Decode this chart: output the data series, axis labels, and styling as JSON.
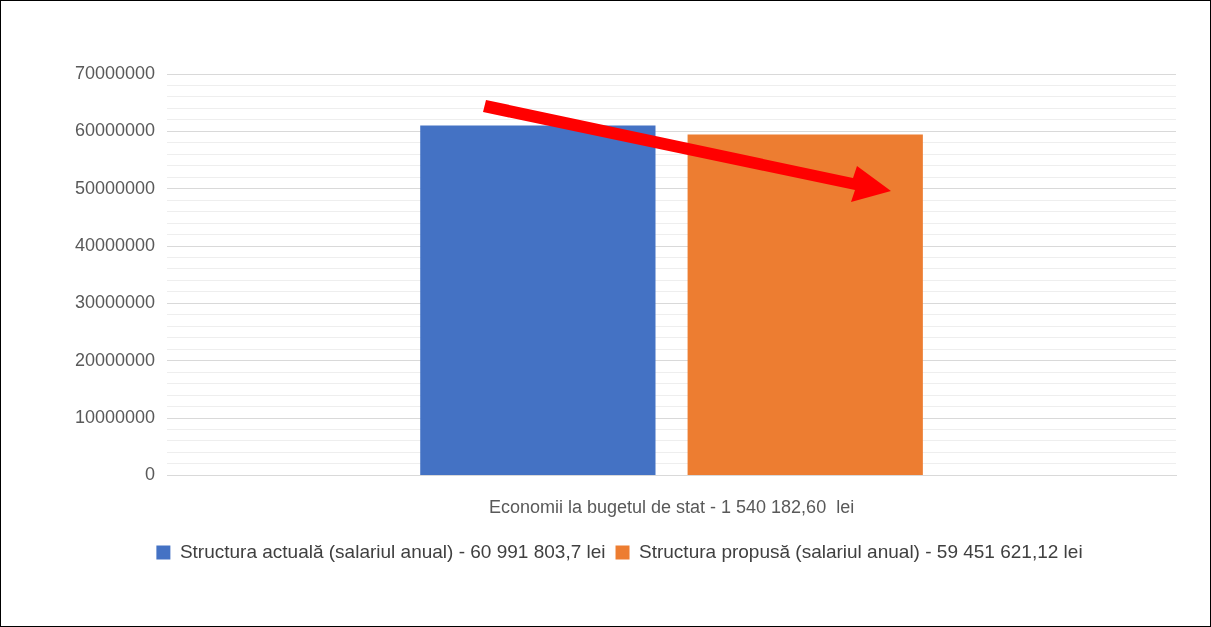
{
  "chart_data": {
    "type": "bar",
    "categories": [
      "Economii la bugetul de stat - 1 540 182,60  lei"
    ],
    "series": [
      {
        "name": "Structura actuală (salariul anual) - 60 991 803,7 lei",
        "color": "#4472c4",
        "values": [
          61000000
        ]
      },
      {
        "name": "Structura propusă (salariul anual) - 59 451 621,12 lei",
        "color": "#ed7d31",
        "values": [
          59450000
        ]
      }
    ],
    "ylim": [
      0,
      70000000
    ],
    "yticks": [
      0,
      {
        "value": 2000000,
        "label": null
      },
      {
        "value": 4000000,
        "label": null
      },
      {
        "value": 6000000,
        "label": null
      },
      {
        "value": 8000000,
        "label": null
      },
      10000000,
      {
        "value": 12000000,
        "label": null
      },
      {
        "value": 14000000,
        "label": null
      },
      {
        "value": 16000000,
        "label": null
      },
      {
        "value": 18000000,
        "label": null
      },
      20000000,
      {
        "value": 22000000,
        "label": null
      },
      {
        "value": 24000000,
        "label": null
      },
      {
        "value": 26000000,
        "label": null
      },
      {
        "value": 28000000,
        "label": null
      },
      30000000,
      {
        "value": 32000000,
        "label": null
      },
      {
        "value": 34000000,
        "label": null
      },
      {
        "value": 36000000,
        "label": null
      },
      {
        "value": 38000000,
        "label": null
      },
      40000000,
      {
        "value": 42000000,
        "label": null
      },
      {
        "value": 44000000,
        "label": null
      },
      {
        "value": 46000000,
        "label": null
      },
      {
        "value": 48000000,
        "label": null
      },
      50000000,
      {
        "value": 52000000,
        "label": null
      },
      {
        "value": 54000000,
        "label": null
      },
      {
        "value": 56000000,
        "label": null
      },
      {
        "value": 58000000,
        "label": null
      },
      60000000,
      {
        "value": 62000000,
        "label": null
      },
      {
        "value": 64000000,
        "label": null
      },
      {
        "value": 66000000,
        "label": null
      },
      {
        "value": 68000000,
        "label": null
      },
      70000000
    ],
    "grid": "y",
    "legend": "bottom"
  }
}
